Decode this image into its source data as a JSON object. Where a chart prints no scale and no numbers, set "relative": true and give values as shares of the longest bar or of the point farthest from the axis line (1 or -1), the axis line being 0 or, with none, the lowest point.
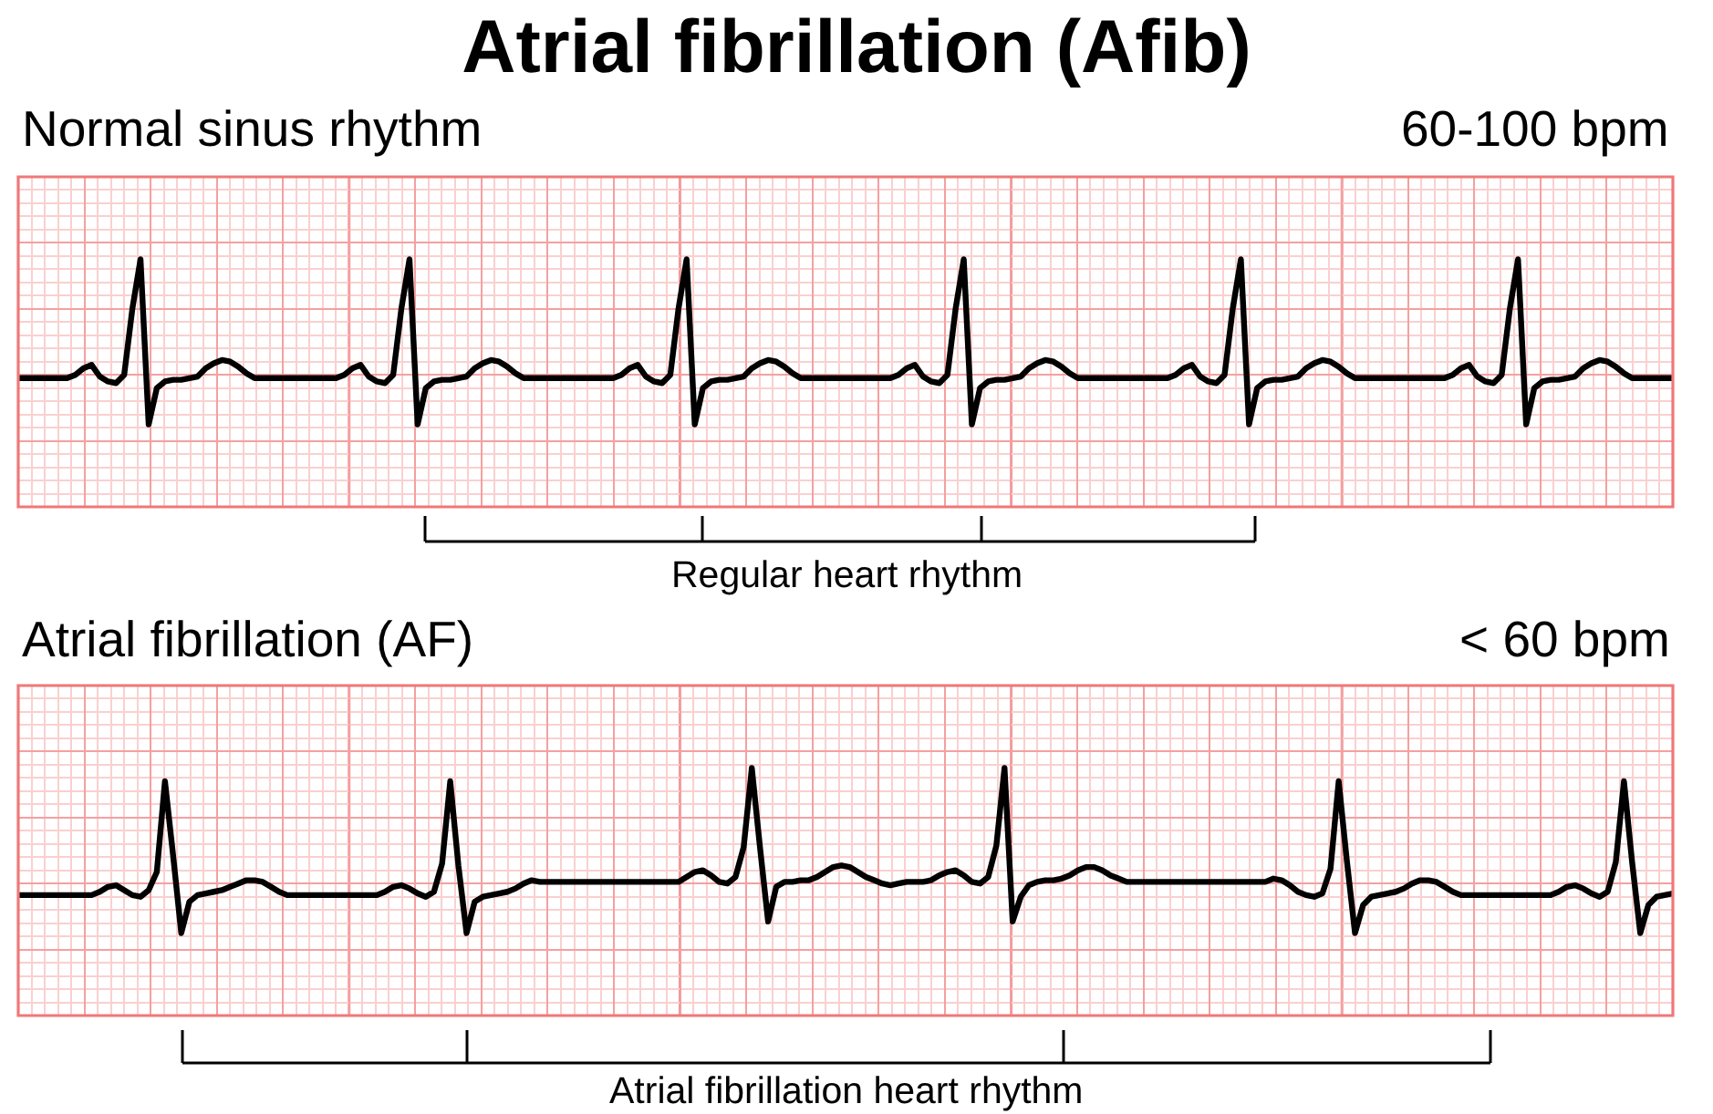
{
  "chart_data": [
    {
      "type": "line",
      "title": "Atrial fibrillation (Afib)",
      "subtitle": "Normal sinus rhythm",
      "annotations": [
        "60-100 bpm",
        "Regular heart rhythm"
      ],
      "relative": true,
      "grid": true,
      "tick_labels": false,
      "categories": [
        null,
        null,
        null,
        null,
        null,
        null,
        null,
        null,
        null,
        null,
        null,
        null,
        null,
        null,
        null,
        null,
        null,
        null,
        null,
        null,
        null,
        null,
        null,
        null,
        null,
        null,
        null,
        null,
        null,
        null,
        null,
        null,
        null,
        null,
        null,
        null,
        null,
        null,
        null,
        null,
        null,
        null,
        null,
        null,
        null,
        null,
        null,
        null,
        null,
        null,
        null,
        null,
        null,
        null,
        null,
        null,
        null,
        null,
        null,
        null,
        null,
        null,
        null,
        null,
        null,
        null,
        null,
        null,
        null,
        null,
        null,
        null,
        null,
        null,
        null,
        null,
        null,
        null,
        null,
        null,
        null,
        null,
        null,
        null,
        null,
        null,
        null,
        null,
        null,
        null,
        null,
        null,
        null,
        null,
        null,
        null,
        null,
        null,
        null,
        null,
        null,
        null,
        null,
        null,
        null,
        null,
        null,
        null,
        null,
        null,
        null,
        null,
        null,
        null,
        null,
        null,
        null,
        null,
        null,
        null,
        null,
        null,
        null,
        null,
        null,
        null,
        null,
        null,
        null,
        null,
        null,
        null,
        null,
        null,
        null,
        null,
        null,
        null,
        null,
        null,
        null,
        null,
        null,
        null,
        null,
        null,
        null,
        null,
        null,
        null,
        null,
        null,
        null,
        null,
        null,
        null,
        null,
        null,
        null,
        null,
        null,
        null,
        null,
        null,
        null,
        null,
        null,
        null,
        null,
        null,
        null,
        null,
        null,
        null,
        null,
        null,
        null,
        null,
        null,
        null,
        null,
        null,
        null,
        null,
        null,
        null,
        null,
        null,
        null,
        null,
        null,
        null,
        null,
        null,
        null,
        null,
        null,
        null,
        null,
        null,
        null,
        null,
        null,
        null
      ],
      "series": [
        {
          "color": "#000000",
          "values": [
            0.28,
            0.28,
            0.28,
            0.28,
            0.28,
            0.28,
            0.28,
            0.3,
            0.34,
            0.36,
            0.29,
            0.26,
            0.25,
            0.3,
            0.7,
            1,
            0,
            0.22,
            0.26,
            0.27,
            0.27,
            0.28,
            0.29,
            0.34,
            0.37,
            0.39,
            0.38,
            0.35,
            0.31,
            0.28,
            0.28,
            0.28,
            0.28,
            0.28,
            0.28,
            0.28,
            0.28,
            0.28,
            0.28,
            0.28,
            0.3,
            0.34,
            0.36,
            0.29,
            0.26,
            0.25,
            0.3,
            0.7,
            1,
            0,
            0.22,
            0.26,
            0.27,
            0.27,
            0.28,
            0.29,
            0.34,
            0.37,
            0.39,
            0.38,
            0.35,
            0.31,
            0.28,
            0.28,
            0.28,
            0.28,
            0.28,
            0.28,
            0.28,
            0.28,
            0.28,
            0.28,
            0.28,
            0.28,
            0.3,
            0.34,
            0.36,
            0.29,
            0.26,
            0.25,
            0.3,
            0.7,
            1,
            0,
            0.22,
            0.26,
            0.27,
            0.27,
            0.28,
            0.29,
            0.34,
            0.37,
            0.39,
            0.38,
            0.35,
            0.31,
            0.28,
            0.28,
            0.28,
            0.28,
            0.28,
            0.28,
            0.28,
            0.28,
            0.28,
            0.28,
            0.28,
            0.28,
            0.3,
            0.34,
            0.36,
            0.29,
            0.26,
            0.25,
            0.3,
            0.7,
            1,
            0,
            0.22,
            0.26,
            0.27,
            0.27,
            0.28,
            0.29,
            0.34,
            0.37,
            0.39,
            0.38,
            0.35,
            0.31,
            0.28,
            0.28,
            0.28,
            0.28,
            0.28,
            0.28,
            0.28,
            0.28,
            0.28,
            0.28,
            0.28,
            0.28,
            0.3,
            0.34,
            0.36,
            0.29,
            0.26,
            0.25,
            0.3,
            0.7,
            1,
            0,
            0.22,
            0.26,
            0.27,
            0.27,
            0.28,
            0.29,
            0.34,
            0.37,
            0.39,
            0.38,
            0.35,
            0.31,
            0.28,
            0.28,
            0.28,
            0.28,
            0.28,
            0.28,
            0.28,
            0.28,
            0.28,
            0.28,
            0.28,
            0.28,
            0.3,
            0.34,
            0.36,
            0.29,
            0.26,
            0.25,
            0.3,
            0.7,
            1,
            0,
            0.22,
            0.26,
            0.27,
            0.27,
            0.28,
            0.29,
            0.34,
            0.37,
            0.39,
            0.38,
            0.35,
            0.31,
            0.28,
            0.28,
            0.28,
            0.28,
            0.28,
            0.28
          ]
        }
      ]
    },
    {
      "type": "line",
      "subtitle": "Atrial fibrillation (AF)",
      "annotations": [
        "< 60 bpm",
        "Atrial fibrillation heart rhythm"
      ],
      "relative": true,
      "grid": true,
      "tick_labels": false,
      "categories": [
        null,
        null,
        null,
        null,
        null,
        null,
        null,
        null,
        null,
        null,
        null,
        null,
        null,
        null,
        null,
        null,
        null,
        null,
        null,
        null,
        null,
        null,
        null,
        null,
        null,
        null,
        null,
        null,
        null,
        null,
        null,
        null,
        null,
        null,
        null,
        null,
        null,
        null,
        null,
        null,
        null,
        null,
        null,
        null,
        null,
        null,
        null,
        null,
        null,
        null,
        null,
        null,
        null,
        null,
        null,
        null,
        null,
        null,
        null,
        null,
        null,
        null,
        null,
        null,
        null,
        null,
        null,
        null,
        null,
        null,
        null,
        null,
        null,
        null,
        null,
        null,
        null,
        null,
        null,
        null,
        null,
        null,
        null,
        null,
        null,
        null,
        null,
        null,
        null,
        null,
        null,
        null,
        null,
        null,
        null,
        null,
        null,
        null,
        null,
        null,
        null,
        null,
        null,
        null,
        null,
        null,
        null,
        null,
        null,
        null,
        null,
        null,
        null,
        null,
        null,
        null,
        null,
        null,
        null,
        null,
        null,
        null,
        null,
        null,
        null,
        null,
        null,
        null,
        null,
        null,
        null,
        null,
        null,
        null,
        null,
        null,
        null,
        null,
        null,
        null,
        null,
        null,
        null,
        null,
        null,
        null,
        null,
        null,
        null,
        null,
        null,
        null,
        null,
        null,
        null,
        null,
        null,
        null,
        null,
        null,
        null,
        null,
        null,
        null,
        null,
        null,
        null,
        null,
        null,
        null,
        null,
        null,
        null,
        null,
        null,
        null,
        null,
        null,
        null,
        null,
        null,
        null,
        null,
        null,
        null,
        null,
        null,
        null,
        null,
        null,
        null,
        null,
        null,
        null,
        null,
        null,
        null,
        null,
        null,
        null,
        null,
        null,
        null,
        null
      ],
      "series": [
        {
          "color": "#000000",
          "values": [
            0.23,
            0.23,
            0.23,
            0.23,
            0.23,
            0.23,
            0.23,
            0.23,
            0.23,
            0.23,
            0.25,
            0.28,
            0.29,
            0.26,
            0.23,
            0.22,
            0.26,
            0.37,
            0.92,
            0.47,
            0,
            0.19,
            0.23,
            0.24,
            0.25,
            0.26,
            0.28,
            0.3,
            0.32,
            0.32,
            0.31,
            0.28,
            0.25,
            0.23,
            0.23,
            0.23,
            0.23,
            0.23,
            0.23,
            0.23,
            0.23,
            0.23,
            0.23,
            0.23,
            0.23,
            0.25,
            0.28,
            0.29,
            0.27,
            0.24,
            0.22,
            0.25,
            0.42,
            0.92,
            0.41,
            0,
            0.19,
            0.22,
            0.23,
            0.24,
            0.25,
            0.27,
            0.3,
            0.32,
            0.31,
            0.31,
            0.31,
            0.31,
            0.31,
            0.31,
            0.31,
            0.31,
            0.31,
            0.31,
            0.31,
            0.31,
            0.31,
            0.31,
            0.31,
            0.31,
            0.31,
            0.31,
            0.34,
            0.37,
            0.38,
            0.35,
            0.31,
            0.3,
            0.34,
            0.52,
            1,
            0.52,
            0.07,
            0.28,
            0.31,
            0.31,
            0.32,
            0.32,
            0.34,
            0.37,
            0.4,
            0.41,
            0.4,
            0.37,
            0.34,
            0.32,
            0.3,
            0.29,
            0.3,
            0.31,
            0.31,
            0.31,
            0.32,
            0.35,
            0.37,
            0.38,
            0.35,
            0.31,
            0.3,
            0.34,
            0.53,
            1,
            0.07,
            0.22,
            0.29,
            0.31,
            0.32,
            0.32,
            0.33,
            0.35,
            0.38,
            0.4,
            0.4,
            0.38,
            0.35,
            0.33,
            0.31,
            0.31,
            0.31,
            0.31,
            0.31,
            0.31,
            0.31,
            0.31,
            0.31,
            0.31,
            0.31,
            0.31,
            0.31,
            0.31,
            0.31,
            0.31,
            0.31,
            0.31,
            0.33,
            0.32,
            0.29,
            0.25,
            0.23,
            0.22,
            0.24,
            0.39,
            0.92,
            0.44,
            0,
            0.17,
            0.22,
            0.23,
            0.24,
            0.25,
            0.27,
            0.3,
            0.32,
            0.32,
            0.31,
            0.28,
            0.25,
            0.23,
            0.23,
            0.23,
            0.23,
            0.23,
            0.23,
            0.23,
            0.23,
            0.23,
            0.23,
            0.23,
            0.23,
            0.25,
            0.28,
            0.29,
            0.27,
            0.24,
            0.22,
            0.25,
            0.43,
            0.92,
            0.43,
            0,
            0.17,
            0.22,
            0.23,
            0.24
          ]
        }
      ]
    }
  ]
}
